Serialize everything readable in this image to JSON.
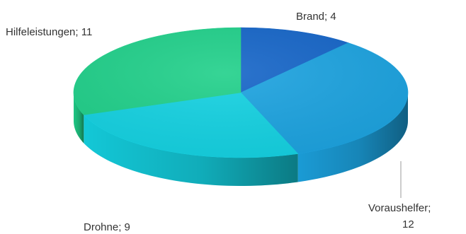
{
  "chart_data": {
    "type": "pie",
    "style": "3d",
    "title": "",
    "legend": "none",
    "slices": [
      {
        "name": "Brand",
        "value": 4,
        "label": "Brand; 4",
        "color": "#1565C8"
      },
      {
        "name": "Voraushelfer",
        "value": 12,
        "label_line1": "Voraushelfer;",
        "label_line2": "12",
        "color": "#1CA3E0"
      },
      {
        "name": "Drohne",
        "value": 9,
        "label": "Drohne; 9",
        "color": "#14D2E2"
      },
      {
        "name": "Hilfeleistungen",
        "value": 11,
        "label": "Hilfeleistungen; 11",
        "color": "#20D08A"
      }
    ]
  }
}
